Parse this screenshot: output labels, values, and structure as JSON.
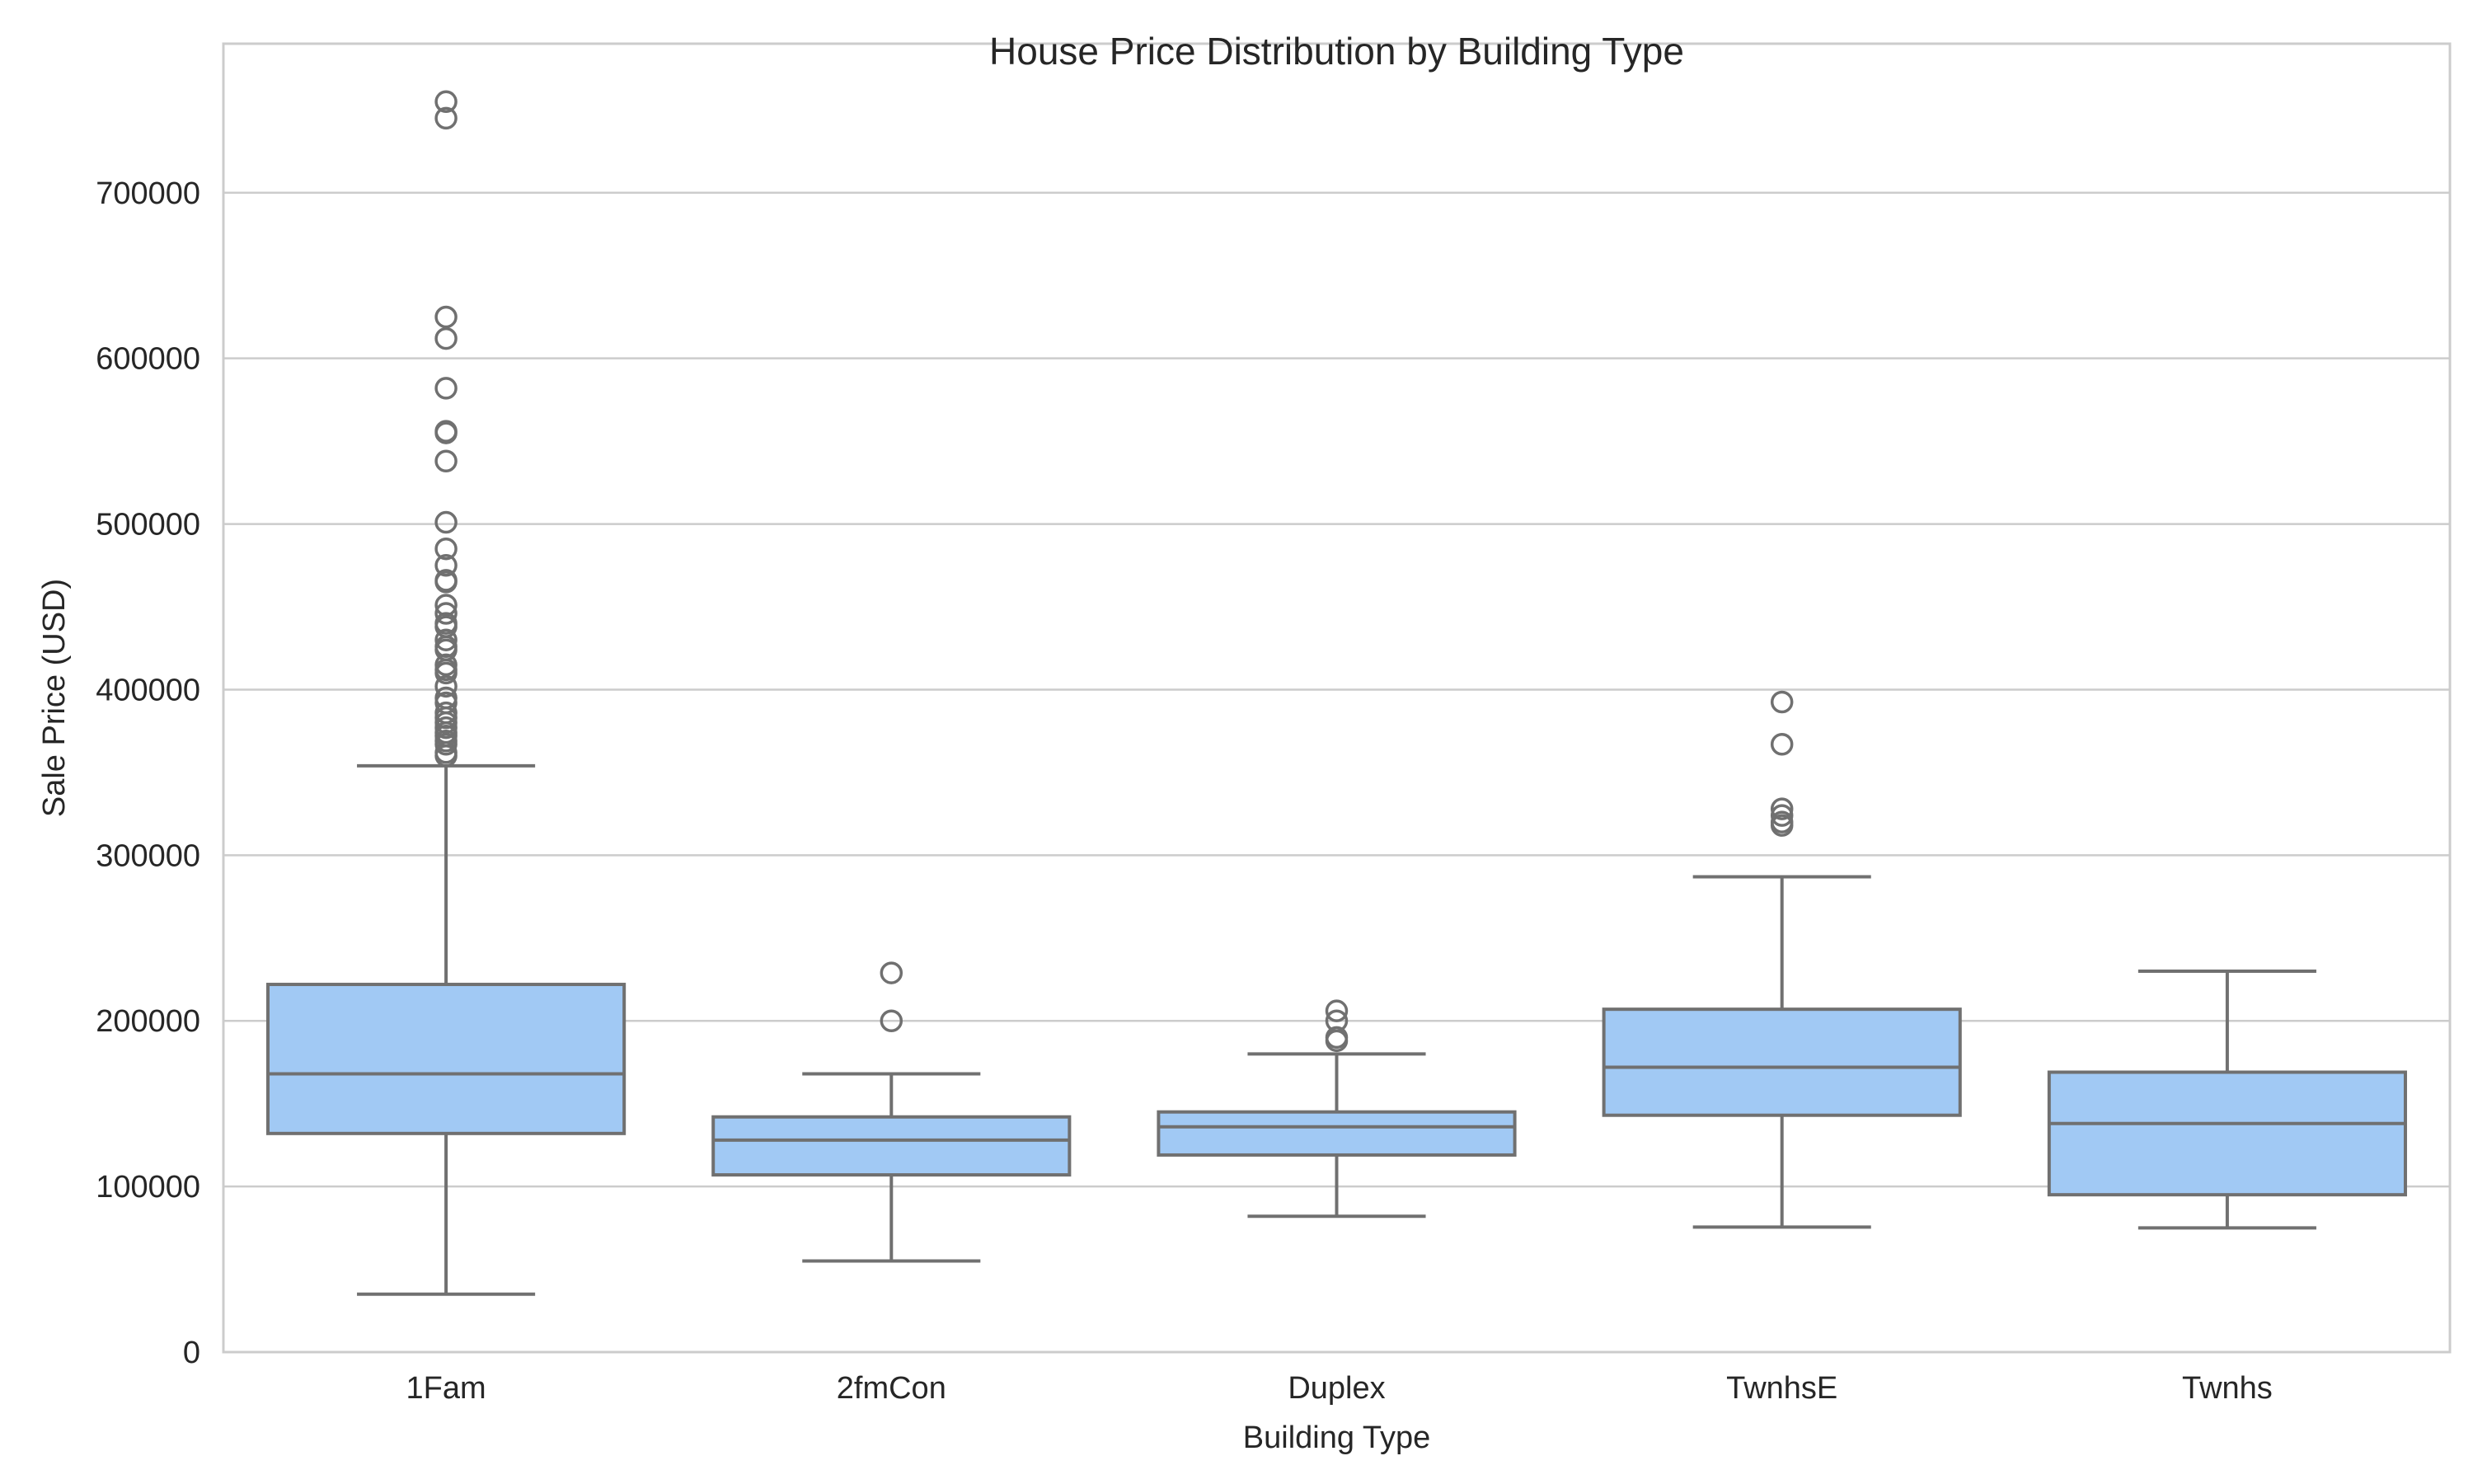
{
  "chart_data": {
    "type": "box",
    "title": "House Price Distribution by Building Type",
    "xlabel": "Building Type",
    "ylabel": "Sale Price (USD)",
    "ylim": [
      0,
      790000
    ],
    "yticks": [
      0,
      100000,
      200000,
      300000,
      400000,
      500000,
      600000,
      700000
    ],
    "grid": "horizontal",
    "legend": "none",
    "colors": {
      "box_fill": "#a1c9f4",
      "box_edge": "#707070",
      "grid": "#cccccc",
      "spine": "#cccccc"
    },
    "categories": [
      "1Fam",
      "2fmCon",
      "Duplex",
      "TwnhsE",
      "Twnhs"
    ],
    "boxes": [
      {
        "category": "1Fam",
        "whisker_low": 35000,
        "q1": 132000,
        "median": 168000,
        "q3": 222000,
        "whisker_high": 354000,
        "outliers": [
          755000,
          745000,
          625000,
          612000,
          582000,
          556000,
          555000,
          538000,
          501000,
          485000,
          475000,
          466000,
          465000,
          451000,
          446000,
          440000,
          438000,
          430000,
          426000,
          424000,
          415000,
          412000,
          410000,
          402000,
          395000,
          392000,
          386000,
          383000,
          380000,
          377000,
          374000,
          372000,
          369000,
          367000,
          362000,
          360000
        ]
      },
      {
        "category": "2fmCon",
        "whisker_low": 55000,
        "q1": 107000,
        "median": 128000,
        "q3": 142000,
        "whisker_high": 168000,
        "outliers": [
          228950,
          200000
        ]
      },
      {
        "category": "Duplex",
        "whisker_low": 82000,
        "q1": 119000,
        "median": 136000,
        "q3": 145000,
        "whisker_high": 180000,
        "outliers": [
          206000,
          200000,
          190000,
          188000
        ]
      },
      {
        "category": "TwnhsE",
        "whisker_low": 75500,
        "q1": 143000,
        "median": 172000,
        "q3": 207000,
        "whisker_high": 287000,
        "outliers": [
          392500,
          367000,
          328000,
          324000,
          320000,
          318000
        ]
      },
      {
        "category": "Twnhs",
        "whisker_low": 75000,
        "q1": 95000,
        "median": 138000,
        "q3": 169000,
        "whisker_high": 230000,
        "outliers": []
      }
    ]
  }
}
